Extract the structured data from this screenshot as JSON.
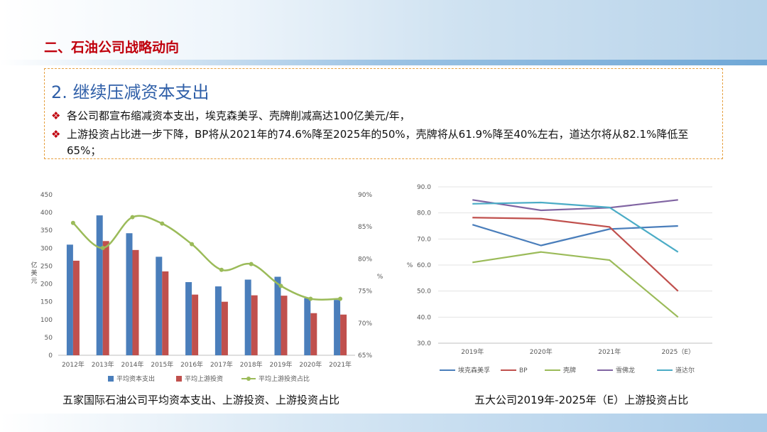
{
  "header": {
    "title": "二、石油公司战略动向"
  },
  "section": {
    "subtitle": "2. 继续压减资本支出",
    "bullet_mark": "❖",
    "bullets": [
      "各公司都宣布缩减资本支出，埃克森美孚、壳牌削减高达100亿美元/年，",
      "上游投资占比进一步下降，BP将从2021年的74.6%降至2025年的50%，壳牌将从61.9%降至40%左右，道达尔将从82.1%降低至",
      "65%；"
    ]
  },
  "captions": {
    "left": "五家国际石油公司平均资本支出、上游投资、上游投资占比",
    "right": "五大公司2019年-2025年（E）上游投资占比"
  },
  "chart_data": [
    {
      "type": "bar",
      "categories": [
        "2012年",
        "2013年",
        "2014年",
        "2015年",
        "2016年",
        "2017年",
        "2018年",
        "2019年",
        "2020年",
        "2021年"
      ],
      "ylabel": "亿美元",
      "y2label": "%",
      "ylim": [
        0,
        450
      ],
      "yticks": [
        "0",
        "50",
        "100",
        "150",
        "200",
        "250",
        "300",
        "350",
        "400",
        "450"
      ],
      "y2lim": [
        65,
        90
      ],
      "y2ticks": [
        "65%",
        "70%",
        "75%",
        "80%",
        "85%",
        "90%"
      ],
      "legend_position": "bottom",
      "series": [
        {
          "name": "平均资本支出",
          "kind": "bar",
          "color": "#4a7ebb",
          "values": [
            310,
            392,
            342,
            276,
            205,
            193,
            212,
            220,
            160,
            155
          ]
        },
        {
          "name": "平均上游投资",
          "kind": "bar",
          "color": "#c0504d",
          "values": [
            265,
            320,
            295,
            235,
            170,
            150,
            168,
            167,
            118,
            114
          ]
        },
        {
          "name": "平均上游投资占比",
          "kind": "line",
          "axis": "right",
          "color": "#9bbb59",
          "values": [
            85.6,
            81.7,
            86.5,
            85.5,
            82.3,
            78.3,
            79.2,
            75.8,
            73.8,
            73.8
          ]
        }
      ]
    },
    {
      "type": "line",
      "categories": [
        "2019年",
        "2020年",
        "2021年",
        "2025（E）"
      ],
      "ylabel": "%",
      "ylim": [
        30,
        90
      ],
      "yticks": [
        "30.0",
        "40.0",
        "50.0",
        "60.0",
        "70.0",
        "80.0",
        "90.0"
      ],
      "legend_position": "bottom",
      "series": [
        {
          "name": "埃克森美孚",
          "color": "#4a7ebb",
          "values": [
            75.5,
            67.5,
            73.8,
            75.0
          ]
        },
        {
          "name": "BP",
          "color": "#c0504d",
          "values": [
            78.2,
            77.8,
            74.6,
            50.0
          ]
        },
        {
          "name": "壳牌",
          "color": "#9bbb59",
          "values": [
            61.0,
            65.0,
            61.9,
            40.0
          ]
        },
        {
          "name": "雪佛龙",
          "color": "#8064a2",
          "values": [
            85.0,
            81.0,
            82.0,
            85.0
          ]
        },
        {
          "name": "道达尔",
          "color": "#4bacc6",
          "values": [
            83.5,
            84.0,
            82.1,
            65.0
          ]
        }
      ]
    }
  ]
}
